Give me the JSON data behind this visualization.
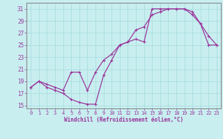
{
  "title": "",
  "xlabel": "Windchill (Refroidissement éolien,°C)",
  "bg_color": "#c8eef0",
  "line_color": "#993399",
  "grid_color": "#aadddd",
  "xlim": [
    -0.5,
    23.5
  ],
  "ylim": [
    14.5,
    32
  ],
  "yticks": [
    15,
    17,
    19,
    21,
    23,
    25,
    27,
    29,
    31
  ],
  "xticks": [
    0,
    1,
    2,
    3,
    4,
    5,
    6,
    7,
    8,
    9,
    10,
    11,
    12,
    13,
    14,
    15,
    16,
    17,
    18,
    19,
    20,
    21,
    22,
    23
  ],
  "line1_x": [
    0,
    1,
    2,
    3,
    4,
    5,
    6,
    7,
    8,
    9,
    10,
    11,
    12,
    13,
    14,
    15,
    16,
    17,
    18,
    19,
    20,
    21,
    22,
    23
  ],
  "line1_y": [
    18.0,
    19.0,
    18.5,
    18.0,
    17.5,
    20.5,
    20.5,
    17.5,
    20.5,
    22.5,
    23.5,
    25.0,
    25.5,
    26.0,
    25.5,
    31.0,
    31.0,
    31.0,
    31.0,
    31.0,
    30.0,
    28.5,
    25.0,
    25.0
  ],
  "line2_x": [
    0,
    1,
    2,
    3,
    4,
    5,
    6,
    7,
    8,
    9,
    10,
    11,
    12,
    13,
    14,
    15,
    16,
    17,
    18,
    19,
    20,
    21,
    22,
    23
  ],
  "line2_y": [
    18.0,
    19.0,
    18.0,
    17.5,
    17.0,
    16.0,
    15.5,
    15.2,
    15.2,
    20.0,
    22.5,
    25.0,
    25.5,
    27.5,
    28.0,
    30.0,
    30.5,
    31.0,
    31.0,
    31.0,
    30.5,
    28.5,
    26.5,
    25.0
  ]
}
